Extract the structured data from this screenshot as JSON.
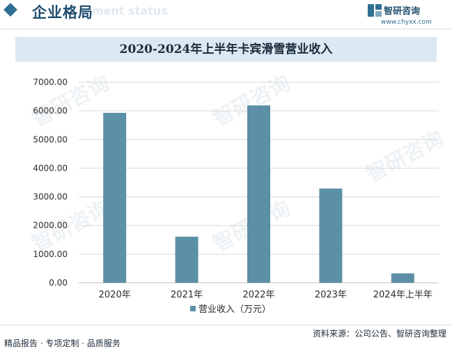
{
  "header": {
    "title": "企业格局",
    "subtitle_ghost": "ment status",
    "brand_name": "智研咨询",
    "brand_url": "www.chyxx.com"
  },
  "watermark_text": "智研咨询",
  "colors": {
    "bar": "#5b90a6",
    "title_band": "#dce9f3",
    "accent": "#2f6f93",
    "grid": "#d9d9d9"
  },
  "chart_data": {
    "type": "bar",
    "title": "2020-2024年上半年卡宾滑雪营业收入",
    "categories": [
      "2020年",
      "2021年",
      "2022年",
      "2023年",
      "2024年上半年"
    ],
    "series": [
      {
        "name": "营业收入（万元）",
        "values": [
          5930,
          1610,
          6190,
          3290,
          330
        ]
      }
    ],
    "ylim": [
      0,
      7000
    ],
    "yticks": [
      "0.00",
      "1000.00",
      "2000.00",
      "3000.00",
      "4000.00",
      "5000.00",
      "6000.00",
      "7000.00"
    ],
    "ytick_values": [
      0,
      1000,
      2000,
      3000,
      4000,
      5000,
      6000,
      7000
    ],
    "grid": true,
    "legend": "bottom-center"
  },
  "footer": {
    "source": "资料来源：公司公告、智研咨询整理",
    "services": "精品报告 · 专项定制 · 品质服务"
  }
}
